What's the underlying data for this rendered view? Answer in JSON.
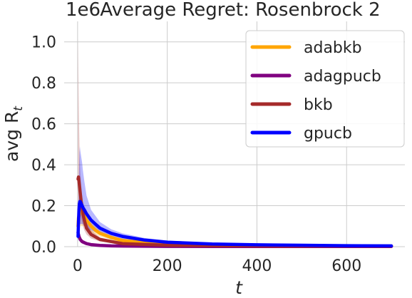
{
  "chart_data": {
    "type": "line",
    "title": "Average Regret: Rosenbrock 2",
    "xlabel": "t",
    "ylabel_base": "avg R",
    "ylabel_sub": "t",
    "offset_text": "1e6",
    "xlim": [
      -30,
      730
    ],
    "ylim": [
      0,
      1.1
    ],
    "xticks": [
      0,
      200,
      400,
      600
    ],
    "yticks": [
      0.0,
      0.2,
      0.4,
      0.6,
      0.8,
      1.0
    ],
    "xtick_labels": [
      "0",
      "200",
      "400",
      "600"
    ],
    "ytick_labels": [
      "0.0",
      "0.2",
      "0.4",
      "0.6",
      "0.8",
      "1.0"
    ],
    "grid": true,
    "legend_position": "top-right",
    "series": [
      {
        "name": "adabkb",
        "color": "#FFA500",
        "x": [
          1,
          2,
          3,
          4,
          5,
          6,
          8,
          10,
          12,
          15,
          20,
          30,
          40,
          50,
          75,
          100,
          150,
          200,
          300,
          400,
          500,
          600,
          700
        ],
        "y": [
          0.1,
          0.14,
          0.15,
          0.16,
          0.17,
          0.17,
          0.17,
          0.165,
          0.16,
          0.15,
          0.13,
          0.1,
          0.08,
          0.065,
          0.045,
          0.03,
          0.02,
          0.012,
          0.008,
          0.006,
          0.005,
          0.004,
          0.003
        ],
        "upper": [
          0.16,
          0.22,
          0.24,
          0.25,
          0.25,
          0.25,
          0.24,
          0.23,
          0.22,
          0.2,
          0.17,
          0.13,
          0.1,
          0.08,
          0.056,
          0.04,
          0.026,
          0.018,
          0.012,
          0.009,
          0.007,
          0.006,
          0.005
        ],
        "lower": [
          0.04,
          0.06,
          0.07,
          0.08,
          0.09,
          0.1,
          0.1,
          0.1,
          0.1,
          0.1,
          0.09,
          0.07,
          0.06,
          0.05,
          0.034,
          0.02,
          0.014,
          0.008,
          0.004,
          0.003,
          0.003,
          0.002,
          0.002
        ]
      },
      {
        "name": "adagpucb",
        "color": "#800080",
        "x": [
          1,
          2,
          3,
          4,
          6,
          8,
          10,
          15,
          20,
          30,
          50,
          75,
          100,
          200,
          300,
          400,
          500,
          600,
          700
        ],
        "y": [
          0.07,
          0.06,
          0.05,
          0.045,
          0.035,
          0.03,
          0.025,
          0.02,
          0.015,
          0.01,
          0.006,
          0.004,
          0.003,
          0.0015,
          0.001,
          0.001,
          0.001,
          0.001,
          0.001
        ],
        "upper": [
          0.1,
          0.09,
          0.075,
          0.065,
          0.05,
          0.042,
          0.035,
          0.028,
          0.021,
          0.014,
          0.009,
          0.006,
          0.0045,
          0.0025,
          0.002,
          0.002,
          0.002,
          0.002,
          0.002
        ],
        "lower": [
          0.04,
          0.035,
          0.03,
          0.028,
          0.022,
          0.018,
          0.015,
          0.012,
          0.009,
          0.006,
          0.003,
          0.002,
          0.0015,
          0.0008,
          0.0005,
          0.0005,
          0.0005,
          0.0005,
          0.0005
        ]
      },
      {
        "name": "bkb",
        "color": "#A52A2A",
        "x": [
          1,
          2,
          3,
          4,
          5,
          6,
          8,
          10,
          12,
          15,
          20,
          30,
          50,
          100,
          200,
          300,
          400,
          500,
          600,
          700
        ],
        "y": [
          0.33,
          0.34,
          0.32,
          0.3,
          0.28,
          0.26,
          0.22,
          0.19,
          0.16,
          0.13,
          0.09,
          0.06,
          0.035,
          0.015,
          0.007,
          0.005,
          0.004,
          0.003,
          0.003,
          0.002
        ],
        "upper": [
          1.02,
          0.82,
          0.62,
          0.5,
          0.42,
          0.37,
          0.3,
          0.25,
          0.21,
          0.17,
          0.12,
          0.08,
          0.045,
          0.02,
          0.01,
          0.007,
          0.006,
          0.005,
          0.004,
          0.004
        ],
        "lower": [
          0.1,
          0.15,
          0.17,
          0.18,
          0.17,
          0.16,
          0.14,
          0.12,
          0.1,
          0.08,
          0.06,
          0.04,
          0.025,
          0.01,
          0.004,
          0.003,
          0.002,
          0.002,
          0.002,
          0.001
        ]
      },
      {
        "name": "gpucb",
        "color": "#0000FF",
        "x": [
          1,
          2,
          3,
          4,
          5,
          6,
          8,
          10,
          12,
          15,
          20,
          30,
          40,
          50,
          75,
          100,
          150,
          200,
          300,
          400,
          500,
          600,
          700
        ],
        "y": [
          0.05,
          0.12,
          0.18,
          0.21,
          0.22,
          0.22,
          0.21,
          0.2,
          0.19,
          0.18,
          0.16,
          0.13,
          0.11,
          0.09,
          0.065,
          0.05,
          0.032,
          0.022,
          0.013,
          0.009,
          0.007,
          0.005,
          0.004
        ],
        "upper": [
          0.09,
          0.22,
          0.36,
          0.45,
          0.49,
          0.47,
          0.44,
          0.41,
          0.37,
          0.32,
          0.25,
          0.18,
          0.15,
          0.12,
          0.085,
          0.065,
          0.042,
          0.03,
          0.018,
          0.012,
          0.009,
          0.007,
          0.006
        ],
        "lower": [
          0.02,
          0.05,
          0.08,
          0.1,
          0.11,
          0.11,
          0.11,
          0.11,
          0.11,
          0.1,
          0.09,
          0.08,
          0.07,
          0.06,
          0.045,
          0.035,
          0.022,
          0.014,
          0.008,
          0.006,
          0.004,
          0.003,
          0.002
        ]
      }
    ]
  }
}
